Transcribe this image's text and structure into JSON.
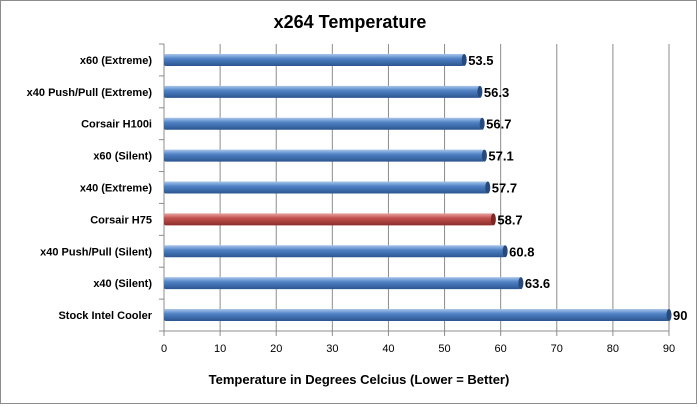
{
  "chart_data": {
    "type": "bar",
    "orientation": "horizontal",
    "title": "x264 Temperature",
    "xlabel": "Temperature in Degrees Celcius (Lower = Better)",
    "ylabel": "",
    "xlim": [
      0,
      90
    ],
    "xticks": [
      0,
      10,
      20,
      30,
      40,
      50,
      60,
      70,
      80,
      90
    ],
    "grid": true,
    "legend": "none",
    "categories": [
      "x60 (Extreme)",
      "x40 Push/Pull (Extreme)",
      "Corsair H100i",
      "x60 (Silent)",
      "x40 (Extreme)",
      "Corsair H75",
      "x40 Push/Pull (Silent)",
      "x40 (Silent)",
      "Stock Intel Cooler"
    ],
    "values": [
      53.5,
      56.3,
      56.7,
      57.1,
      57.7,
      58.7,
      60.8,
      63.6,
      90
    ],
    "data_labels": [
      "53.5",
      "56.3",
      "56.7",
      "57.1",
      "57.7",
      "58.7",
      "60.8",
      "63.6",
      "90"
    ],
    "colors": {
      "default_bar": "#4a7ebb",
      "highlight_bar": "#c0504d",
      "highlight_category": "Corsair H75",
      "grid": "#8c8c8c"
    }
  }
}
